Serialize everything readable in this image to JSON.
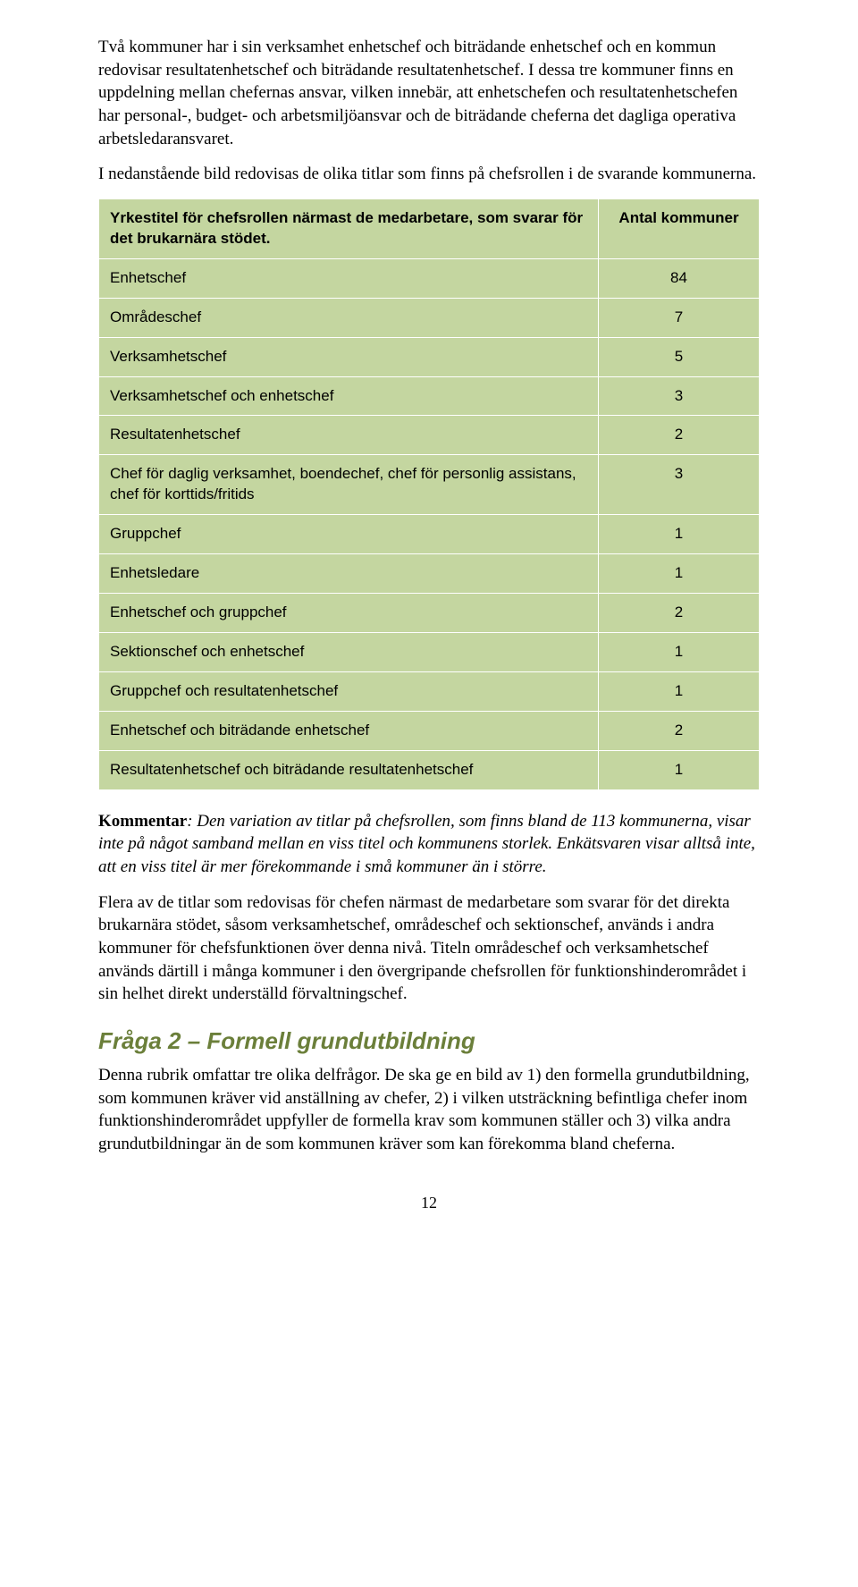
{
  "para1": "Två kommuner har i sin verksamhet enhetschef och biträdande enhetschef och en kommun redovisar resultatenhetschef och biträdande resultatenhetschef. I dessa tre kommuner finns en uppdelning mellan chefernas ansvar, vilken innebär, att enhetschefen och resultatenhetschefen har personal-, budget- och arbetsmiljöansvar och de biträdande cheferna det dagliga operativa arbetsledaransvaret.",
  "para2": "I nedanstående bild redovisas de olika titlar som finns på chefsrollen i de svarande kommunerna.",
  "table": {
    "header_col1": "Yrkestitel för chefsrollen närmast de medarbetare, som svarar för det brukarnära stödet.",
    "header_col2": "Antal kommuner",
    "rows": [
      {
        "label": "Enhetschef",
        "value": "84"
      },
      {
        "label": "Områdeschef",
        "value": "7"
      },
      {
        "label": "Verksamhetschef",
        "value": "5"
      },
      {
        "label": "Verksamhetschef och enhetschef",
        "value": "3"
      },
      {
        "label": "Resultatenhetschef",
        "value": "2"
      },
      {
        "label": "Chef för daglig verksamhet, boendechef, chef för personlig assistans, chef för korttids/fritids",
        "value": "3"
      },
      {
        "label": "Gruppchef",
        "value": "1"
      },
      {
        "label": "Enhetsledare",
        "value": "1"
      },
      {
        "label": "Enhetschef och gruppchef",
        "value": "2"
      },
      {
        "label": "Sektionschef och enhetschef",
        "value": "1"
      },
      {
        "label": "Gruppchef och resultatenhetschef",
        "value": "1"
      },
      {
        "label": "Enhetschef och biträdande enhetschef",
        "value": "2"
      },
      {
        "label": "Resultatenhetschef och biträdande resultatenhetschef",
        "value": "1"
      }
    ]
  },
  "commentary_label": "Kommentar",
  "commentary_tail": ": Den variation av titlar på chefsrollen, som finns bland de 113 kommunerna, visar inte på något samband mellan en viss titel och kommunens storlek. Enkätsvaren visar alltså inte, att en viss titel är mer förekommande i små kommuner än i större.",
  "para4": "Flera av de titlar som redovisas för chefen närmast de medarbetare som svarar för det direkta brukarnära stödet, såsom verksamhetschef, områdeschef och sektionschef, används i andra kommuner för chefsfunktionen över denna nivå. Titeln områdeschef och verksamhetschef används därtill i många kommuner i den övergripande chefsrollen för funktionshinderområdet i sin helhet direkt underställd förvaltningschef.",
  "section_heading": "Fråga 2 – Formell grundutbildning",
  "para5": "Denna rubrik omfattar tre olika delfrågor. De ska ge en bild av 1) den formella grundutbildning, som kommunen kräver vid anställning av chefer, 2) i vilken utsträckning befintliga chefer inom funktionshinderområdet uppfyller de formella krav som kommunen ställer och 3) vilka andra grundutbildningar än de som kommunen kräver som kan förekomma bland cheferna.",
  "page_number": "12"
}
